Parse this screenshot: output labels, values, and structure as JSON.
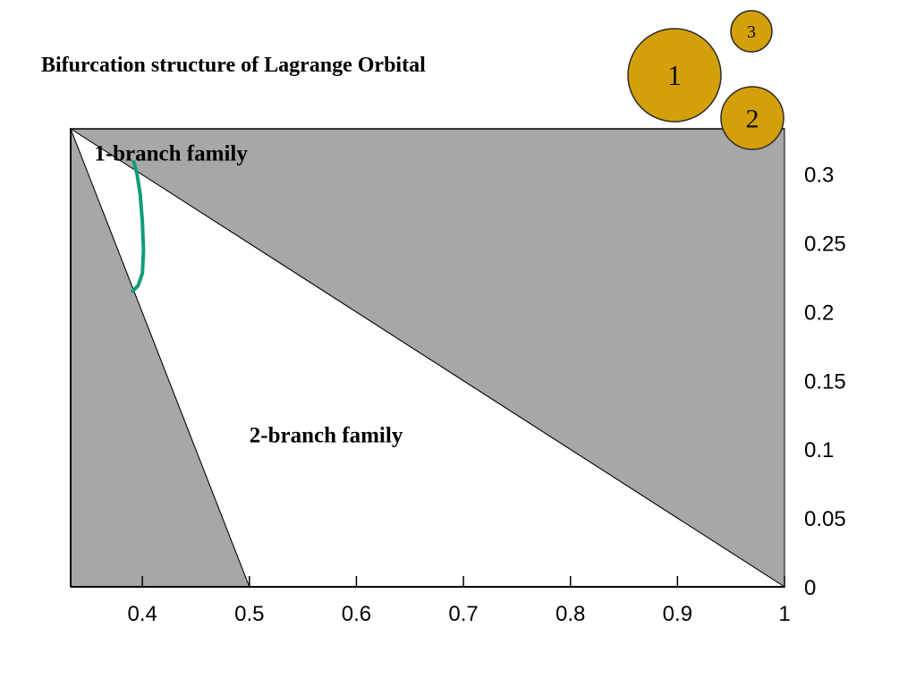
{
  "title": "Bifurcation structure of Lagrange Orbital",
  "colors": {
    "region_fill": "#a6a8a7",
    "curve": "#109c7c",
    "circle_fill": "#d3a00a",
    "circle_stroke": "#2a2a2a",
    "axis": "#000000"
  },
  "legend_circles": [
    {
      "label": "1",
      "size": "large"
    },
    {
      "label": "2",
      "size": "medium"
    },
    {
      "label": "3",
      "size": "small"
    }
  ],
  "chart_data": {
    "type": "area",
    "title": "Bifurcation structure of Lagrange Orbital",
    "xlabel": "",
    "ylabel": "",
    "xlim": [
      0.333,
      1.0
    ],
    "ylim": [
      0,
      0.333
    ],
    "x_ticks": [
      0.4,
      0.5,
      0.6,
      0.7,
      0.8,
      0.9,
      1
    ],
    "x_tick_labels": [
      "0.4",
      "0.5",
      "0.6",
      "0.7",
      "0.8",
      "0.9",
      "1"
    ],
    "y_ticks": [
      0,
      0.05,
      0.1,
      0.15,
      0.2,
      0.25,
      0.3
    ],
    "y_tick_labels": [
      "0",
      "0.05",
      "0.1",
      "0.15",
      "0.2",
      "0.25",
      "0.3"
    ],
    "y_axis_side": "right",
    "grid": false,
    "regions": [
      {
        "fill": "gray",
        "points": [
          [
            0.333,
            0.333
          ],
          [
            0.333,
            0
          ],
          [
            0.5,
            0
          ]
        ]
      },
      {
        "fill": "gray",
        "points": [
          [
            0.333,
            0.333
          ],
          [
            1.0,
            0.333
          ],
          [
            1.0,
            0
          ]
        ]
      },
      {
        "fill": "white",
        "points": [
          [
            0.333,
            0.333
          ],
          [
            0.5,
            0
          ],
          [
            1.0,
            0
          ]
        ]
      }
    ],
    "annotations": [
      {
        "text": "1-branch family",
        "x": 0.355,
        "y": 0.31
      },
      {
        "text": "2-branch family",
        "x": 0.5,
        "y": 0.105
      }
    ],
    "series": [
      {
        "type": "line",
        "x": [
          0.392,
          0.395,
          0.398,
          0.4,
          0.401,
          0.4,
          0.396,
          0.391
        ],
        "y": [
          0.309,
          0.3,
          0.285,
          0.265,
          0.245,
          0.228,
          0.219,
          0.215
        ]
      }
    ]
  }
}
